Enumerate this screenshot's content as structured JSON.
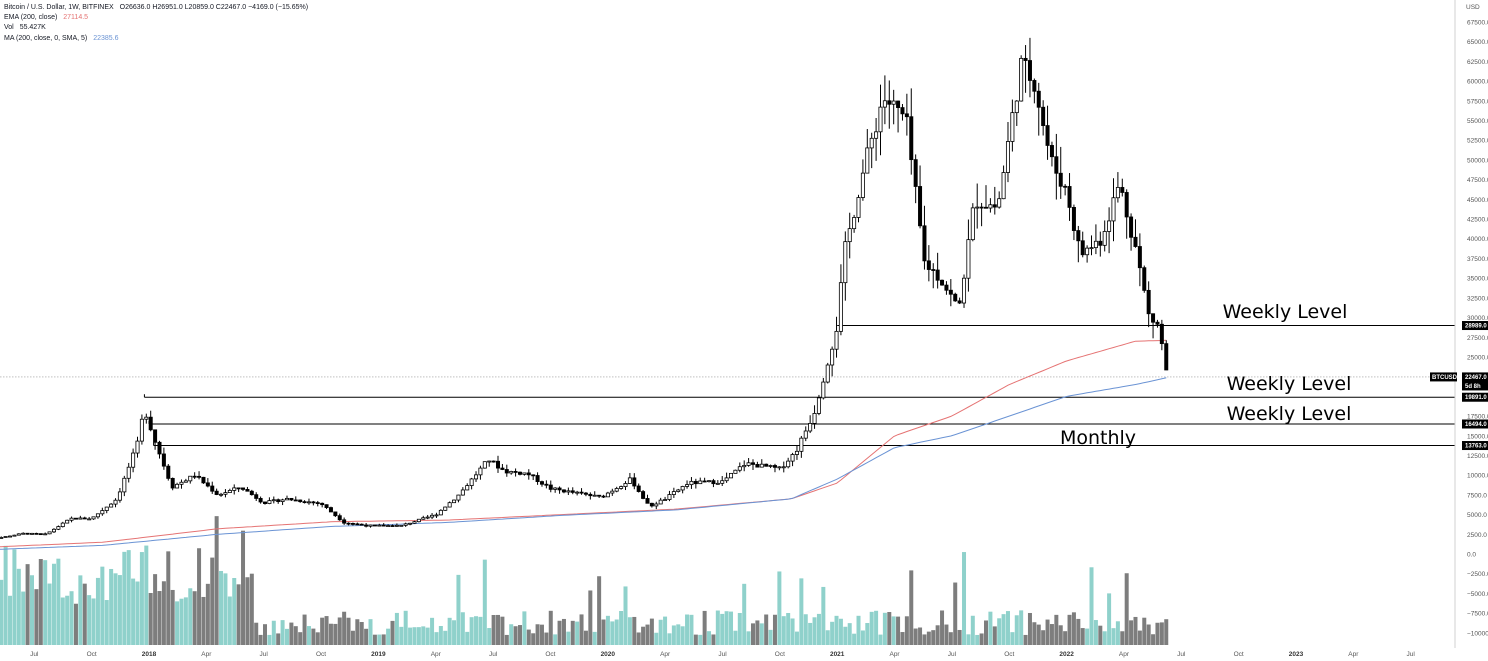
{
  "legend": {
    "symbol": "Bitcoin / U.S. Dollar, 1W, BITFINEX",
    "ohlc": "O26636.0  H26951.0  L20859.0  C22467.0  −4169.0 (−15.65%)",
    "ema_label": "EMA (200, close)",
    "ema_value": "27114.5",
    "vol_label": "Vol",
    "vol_value": "55.427K",
    "ma_label": "MA (200, close, 0, SMA, 5)",
    "ma_value": "22385.6"
  },
  "axis": {
    "unit": "USD"
  },
  "price_tag": {
    "symbol": "BTCUSD",
    "value": "22467.0",
    "countdown": "5d 8h"
  },
  "colors": {
    "ema": "#e57373",
    "ma": "#6a93d4",
    "vol_up": "#8fd1cb",
    "vol_down": "#7d7d7d",
    "candle": "#000000",
    "tag_bg": "#000000"
  },
  "chart_data": {
    "type": "candlestick",
    "title": "Bitcoin / U.S. Dollar, 1W, BITFINEX",
    "ylabel": "USD",
    "ylim": [
      -11500,
      69000
    ],
    "y_ticks": [
      "67500.0",
      "65000.0",
      "62500.0",
      "60000.0",
      "57500.0",
      "55000.0",
      "52500.0",
      "50000.0",
      "47500.0",
      "45000.0",
      "42500.0",
      "40000.0",
      "37500.0",
      "35000.0",
      "32500.0",
      "30000.0",
      "27500.0",
      "25000.0",
      "22500.0",
      "20000.0",
      "17500.0",
      "15000.0",
      "12500.0",
      "10000.0",
      "7500.0",
      "5000.0",
      "2500.0",
      "0.0",
      "−2500.0",
      "−5000.0",
      "−7500.0",
      "−10000.0"
    ],
    "x_ticks": [
      {
        "label": "Jul",
        "t": 2017.5
      },
      {
        "label": "Oct",
        "t": 2017.75
      },
      {
        "label": "2018",
        "t": 2018.0,
        "bold": true
      },
      {
        "label": "Apr",
        "t": 2018.25
      },
      {
        "label": "Jul",
        "t": 2018.5
      },
      {
        "label": "Oct",
        "t": 2018.75
      },
      {
        "label": "2019",
        "t": 2019.0,
        "bold": true
      },
      {
        "label": "Apr",
        "t": 2019.25
      },
      {
        "label": "Jul",
        "t": 2019.5
      },
      {
        "label": "Oct",
        "t": 2019.75
      },
      {
        "label": "2020",
        "t": 2020.0,
        "bold": true
      },
      {
        "label": "Apr",
        "t": 2020.25
      },
      {
        "label": "Jul",
        "t": 2020.5
      },
      {
        "label": "Oct",
        "t": 2020.75
      },
      {
        "label": "2021",
        "t": 2021.0,
        "bold": true
      },
      {
        "label": "Apr",
        "t": 2021.25
      },
      {
        "label": "Jul",
        "t": 2021.5
      },
      {
        "label": "Oct",
        "t": 2021.75
      },
      {
        "label": "2022",
        "t": 2022.0,
        "bold": true
      },
      {
        "label": "Apr",
        "t": 2022.25
      },
      {
        "label": "Jul",
        "t": 2022.5
      },
      {
        "label": "Oct",
        "t": 2022.75
      },
      {
        "label": "2023",
        "t": 2023.0,
        "bold": true
      },
      {
        "label": "Apr",
        "t": 2023.25
      },
      {
        "label": "Jul",
        "t": 2023.5
      }
    ],
    "price_keypoints": [
      [
        2017.26,
        1600
      ],
      [
        2017.45,
        2600
      ],
      [
        2017.55,
        2500
      ],
      [
        2017.66,
        4500
      ],
      [
        2017.75,
        4500
      ],
      [
        2017.86,
        7000
      ],
      [
        2017.95,
        14000
      ],
      [
        2017.98,
        18500
      ],
      [
        2018.03,
        14000
      ],
      [
        2018.1,
        8500
      ],
      [
        2018.2,
        10000
      ],
      [
        2018.3,
        7500
      ],
      [
        2018.4,
        8500
      ],
      [
        2018.5,
        6500
      ],
      [
        2018.6,
        7000
      ],
      [
        2018.75,
        6400
      ],
      [
        2018.85,
        4000
      ],
      [
        2018.95,
        3600
      ],
      [
        2019.1,
        3600
      ],
      [
        2019.25,
        5000
      ],
      [
        2019.35,
        7500
      ],
      [
        2019.48,
        12000
      ],
      [
        2019.55,
        10500
      ],
      [
        2019.65,
        10200
      ],
      [
        2019.75,
        8300
      ],
      [
        2019.85,
        7800
      ],
      [
        2019.97,
        7200
      ],
      [
        2020.1,
        9500
      ],
      [
        2020.18,
        6000
      ],
      [
        2020.25,
        7000
      ],
      [
        2020.35,
        9000
      ],
      [
        2020.5,
        9200
      ],
      [
        2020.6,
        11500
      ],
      [
        2020.75,
        10800
      ],
      [
        2020.82,
        13000
      ],
      [
        2020.9,
        18000
      ],
      [
        2021.0,
        29000
      ],
      [
        2021.03,
        38000
      ],
      [
        2021.1,
        47000
      ],
      [
        2021.2,
        58000
      ],
      [
        2021.3,
        55000
      ],
      [
        2021.38,
        37000
      ],
      [
        2021.45,
        35000
      ],
      [
        2021.53,
        31000
      ],
      [
        2021.6,
        45000
      ],
      [
        2021.7,
        44000
      ],
      [
        2021.8,
        62000
      ],
      [
        2021.86,
        60000
      ],
      [
        2021.93,
        50000
      ],
      [
        2022.0,
        46000
      ],
      [
        2022.06,
        38000
      ],
      [
        2022.15,
        40000
      ],
      [
        2022.23,
        47000
      ],
      [
        2022.3,
        39000
      ],
      [
        2022.36,
        30000
      ],
      [
        2022.4,
        29000
      ],
      [
        2022.44,
        22467
      ]
    ],
    "ema200_keypoints": [
      [
        2017.26,
        800
      ],
      [
        2017.8,
        1500
      ],
      [
        2018.3,
        3200
      ],
      [
        2018.8,
        4100
      ],
      [
        2019.3,
        4300
      ],
      [
        2019.8,
        5000
      ],
      [
        2020.3,
        5700
      ],
      [
        2020.8,
        7000
      ],
      [
        2021.0,
        9000
      ],
      [
        2021.25,
        15000
      ],
      [
        2021.5,
        17500
      ],
      [
        2021.75,
        21500
      ],
      [
        2022.0,
        24500
      ],
      [
        2022.3,
        27000
      ],
      [
        2022.44,
        27114.5
      ]
    ],
    "ma200_keypoints": [
      [
        2017.26,
        500
      ],
      [
        2017.8,
        1100
      ],
      [
        2018.3,
        2500
      ],
      [
        2018.8,
        3500
      ],
      [
        2019.3,
        4000
      ],
      [
        2019.8,
        4900
      ],
      [
        2020.3,
        5600
      ],
      [
        2020.8,
        7000
      ],
      [
        2021.0,
        9500
      ],
      [
        2021.25,
        13500
      ],
      [
        2021.5,
        15000
      ],
      [
        2021.75,
        17500
      ],
      [
        2022.0,
        20000
      ],
      [
        2022.3,
        21500
      ],
      [
        2022.44,
        22385.6
      ]
    ],
    "levels": [
      {
        "price": 28989.0,
        "label_tag": "28989.0",
        "annotation": "Weekly Level",
        "start": 2021.0
      },
      {
        "price": 19891.0,
        "label_tag": "19891.0",
        "annotation": "Weekly Level",
        "start": 2017.98
      },
      {
        "price": 16494.0,
        "label_tag": "16494.0",
        "annotation": "Weekly Level",
        "start": 2018.0
      },
      {
        "price": 13763.0,
        "label_tag": "13763.0",
        "annotation": "Monthly",
        "start": 2018.02
      }
    ],
    "current_price": 22467.0
  }
}
